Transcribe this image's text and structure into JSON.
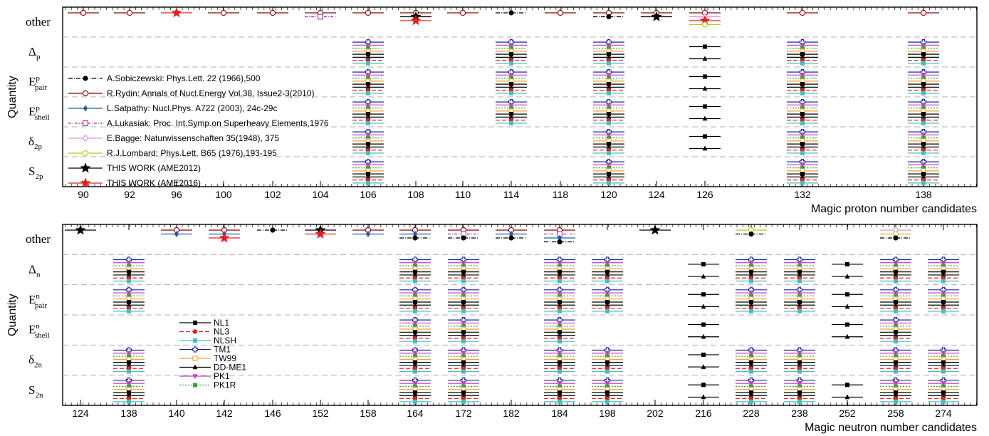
{
  "chart_data": [
    {
      "type": "scatter",
      "panel": "top",
      "xlabel": "Magic proton number candidates",
      "ylabel": "Quantity",
      "categories": [
        "90",
        "92",
        "96",
        "100",
        "102",
        "104",
        "106",
        "108",
        "110",
        "114",
        "118",
        "120",
        "124",
        "126",
        "132",
        "138"
      ],
      "rows": [
        {
          "label": "other",
          "base": "other"
        },
        {
          "label": "Δp",
          "base": "Δ",
          "sub": "p"
        },
        {
          "label": "Epairp",
          "base": "E",
          "sup": "p",
          "sub": "pair"
        },
        {
          "label": "Eshellp",
          "base": "E",
          "sup": "p",
          "sub": "shell"
        },
        {
          "label": "δ2p",
          "base": "δ",
          "sub": "2p"
        },
        {
          "label": "S2p",
          "base": "S",
          "sub": "2p"
        }
      ],
      "references": [
        {
          "name": "A.Sobiczewski: Phys.Lett. 22 (1966),500",
          "color": "#000000",
          "marker": "circle-filled",
          "dash": "6,2,1,2"
        },
        {
          "name": "R.Rydin: Annals of Nucl.Energy Vol.38, Issue2-3(2010)",
          "color": "#8b0000",
          "marker": "circle-open",
          "dash": ""
        },
        {
          "name": "L.Satpathy: Nucl.Phys. A722 (2003), 24c-29c",
          "color": "#1f5fa8",
          "marker": "diamond-filled",
          "dash": ""
        },
        {
          "name": "A.Lukasiak: Proc. Int.Symp.on Superheavy Elements,1976",
          "color": "#9b30a0",
          "marker": "square-open",
          "dash": "4,2,1,2"
        },
        {
          "name": "E.Bagge: Naturwissenschaften 35(1948), 375",
          "color": "#e090e0",
          "marker": "diamond-open",
          "dash": ""
        },
        {
          "name": "R.J.Lombard: Phys.Lett. B65 (1976),193-195",
          "color": "#b8c820",
          "marker": "circle-open",
          "dash": ""
        },
        {
          "name": "THIS WORK (AME2012)",
          "color": "#000000",
          "marker": "star",
          "dash": ""
        },
        {
          "name": "THIS WORK (AME2016)",
          "color": "#e02020",
          "marker": "star",
          "dash": ""
        }
      ],
      "other_points": [
        {
          "x": "90",
          "ref": 1
        },
        {
          "x": "92",
          "ref": 1
        },
        {
          "x": "96",
          "ref": 7
        },
        {
          "x": "100",
          "ref": 1
        },
        {
          "x": "102",
          "ref": 1
        },
        {
          "x": "104",
          "ref": 1
        },
        {
          "x": "104",
          "ref": 3
        },
        {
          "x": "106",
          "ref": 1
        },
        {
          "x": "108",
          "ref": 1
        },
        {
          "x": "108",
          "ref": 6
        },
        {
          "x": "108",
          "ref": 7
        },
        {
          "x": "110",
          "ref": 1
        },
        {
          "x": "114",
          "ref": 0
        },
        {
          "x": "118",
          "ref": 1
        },
        {
          "x": "120",
          "ref": 1
        },
        {
          "x": "120",
          "ref": 0
        },
        {
          "x": "124",
          "ref": 1
        },
        {
          "x": "124",
          "ref": 6
        },
        {
          "x": "126",
          "ref": 1
        },
        {
          "x": "126",
          "ref": 4
        },
        {
          "x": "126",
          "ref": 7
        },
        {
          "x": "126",
          "ref": 5
        },
        {
          "x": "132",
          "ref": 1
        },
        {
          "x": "138",
          "ref": 1
        }
      ],
      "model_columns": [
        {
          "x": "106",
          "quantities": [
            "Δp",
            "Epairp",
            "Eshellp",
            "δ2p",
            "S2p"
          ]
        },
        {
          "x": "114",
          "quantities": [
            "Δp",
            "Epairp",
            "Eshellp"
          ]
        },
        {
          "x": "120",
          "quantities": [
            "Δp",
            "Epairp",
            "Eshellp",
            "δ2p",
            "S2p"
          ]
        },
        {
          "x": "126",
          "quantities": [
            "Δp",
            "Epairp",
            "Eshellp",
            "δ2p"
          ],
          "partial": true
        },
        {
          "x": "132",
          "quantities": [
            "Δp",
            "Epairp",
            "Eshellp",
            "δ2p",
            "S2p"
          ]
        },
        {
          "x": "138",
          "quantities": [
            "Δp",
            "Epairp",
            "Eshellp",
            "δ2p",
            "S2p"
          ]
        }
      ]
    },
    {
      "type": "scatter",
      "panel": "bottom",
      "xlabel": "Magic neutron number candidates",
      "ylabel": "Quantity",
      "categories": [
        "124",
        "138",
        "140",
        "142",
        "146",
        "152",
        "158",
        "164",
        "172",
        "182",
        "184",
        "198",
        "202",
        "216",
        "228",
        "238",
        "252",
        "258",
        "274"
      ],
      "rows": [
        {
          "label": "other",
          "base": "other"
        },
        {
          "label": "Δn",
          "base": "Δ",
          "sub": "n"
        },
        {
          "label": "Epairn",
          "base": "E",
          "sup": "n",
          "sub": "pair"
        },
        {
          "label": "Eshelln",
          "base": "E",
          "sup": "n",
          "sub": "shell"
        },
        {
          "label": "δ2n",
          "base": "δ",
          "sub": "2n"
        },
        {
          "label": "S2n",
          "base": "S",
          "sub": "2n"
        }
      ],
      "models": [
        {
          "name": "NL1",
          "color": "#000000",
          "marker": "square-filled",
          "dash": ""
        },
        {
          "name": "NL3",
          "color": "#e02020",
          "marker": "circle-filled",
          "dash": "6,3"
        },
        {
          "name": "NLSH",
          "color": "#40c0c0",
          "marker": "square-filled",
          "dash": ""
        },
        {
          "name": "TM1",
          "color": "#2020a0",
          "marker": "cross-open",
          "dash": ""
        },
        {
          "name": "TW99",
          "color": "#f0a030",
          "marker": "square-open",
          "dash": ""
        },
        {
          "name": "DD-ME1",
          "color": "#000000",
          "marker": "triangle-filled",
          "dash": ""
        },
        {
          "name": "PK1",
          "color": "#c040c0",
          "marker": "triangle-down",
          "dash": ""
        },
        {
          "name": "PK1R",
          "color": "#40a040",
          "marker": "square-filled",
          "dash": "2,2"
        }
      ],
      "other_points": [
        {
          "x": "124",
          "ref": 6
        },
        {
          "x": "140",
          "ref": 1
        },
        {
          "x": "140",
          "ref": 2
        },
        {
          "x": "142",
          "ref": 1
        },
        {
          "x": "142",
          "ref": 2
        },
        {
          "x": "142",
          "ref": 7
        },
        {
          "x": "146",
          "ref": 0
        },
        {
          "x": "152",
          "ref": 6
        },
        {
          "x": "152",
          "ref": 7
        },
        {
          "x": "158",
          "ref": 1
        },
        {
          "x": "158",
          "ref": 2
        },
        {
          "x": "164",
          "ref": 1
        },
        {
          "x": "164",
          "ref": 2
        },
        {
          "x": "164",
          "ref": 0
        },
        {
          "x": "172",
          "ref": 1
        },
        {
          "x": "172",
          "ref": 3
        },
        {
          "x": "172",
          "ref": 0
        },
        {
          "x": "182",
          "ref": 1
        },
        {
          "x": "182",
          "ref": 2
        },
        {
          "x": "182",
          "ref": 0
        },
        {
          "x": "184",
          "ref": 1
        },
        {
          "x": "184",
          "ref": 3
        },
        {
          "x": "184",
          "ref": 2
        },
        {
          "x": "184",
          "ref": 0
        },
        {
          "x": "202",
          "ref": 6
        },
        {
          "x": "228",
          "ref": 5
        },
        {
          "x": "228",
          "ref": 0
        },
        {
          "x": "258",
          "ref": 4
        },
        {
          "x": "258",
          "ref": 5
        },
        {
          "x": "258",
          "ref": 0
        }
      ],
      "model_columns": [
        {
          "x": "138",
          "quantities": [
            "Δn",
            "Epairn",
            "δ2n",
            "S2n"
          ]
        },
        {
          "x": "164",
          "quantities": [
            "Δn",
            "Epairn",
            "Eshelln",
            "δ2n",
            "S2n"
          ]
        },
        {
          "x": "172",
          "quantities": [
            "Δn",
            "Epairn",
            "Eshelln",
            "δ2n",
            "S2n"
          ]
        },
        {
          "x": "184",
          "quantities": [
            "Δn",
            "Epairn",
            "Eshelln",
            "δ2n",
            "S2n"
          ]
        },
        {
          "x": "198",
          "quantities": [
            "Δn",
            "Epairn",
            "δ2n",
            "S2n"
          ]
        },
        {
          "x": "216",
          "quantities": [
            "Δn",
            "Epairn",
            "Eshelln",
            "δ2n",
            "S2n"
          ],
          "partial": true
        },
        {
          "x": "228",
          "quantities": [
            "Δn",
            "Epairn",
            "δ2n",
            "S2n"
          ]
        },
        {
          "x": "238",
          "quantities": [
            "Δn",
            "Epairn",
            "δ2n",
            "S2n"
          ]
        },
        {
          "x": "252",
          "quantities": [
            "Δn",
            "Epairn",
            "Eshelln",
            "S2n"
          ],
          "partial": true
        },
        {
          "x": "258",
          "quantities": [
            "Δn",
            "Epairn",
            "Eshelln",
            "δ2n",
            "S2n"
          ]
        },
        {
          "x": "274",
          "quantities": [
            "Δn",
            "Epairn",
            "δ2n",
            "S2n"
          ]
        }
      ]
    }
  ]
}
